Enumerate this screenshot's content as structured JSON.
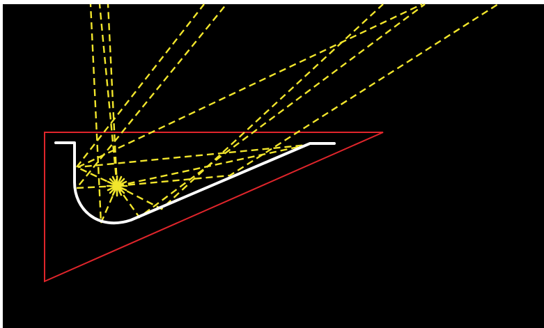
{
  "diagram": {
    "background_color": "#000000",
    "page_color": "#ffffff",
    "boundary_color": "#e0252b",
    "reflector_color": "#ffffff",
    "ray_color": "#f2e62c",
    "source_icon": "light-source-starburst-icon"
  }
}
